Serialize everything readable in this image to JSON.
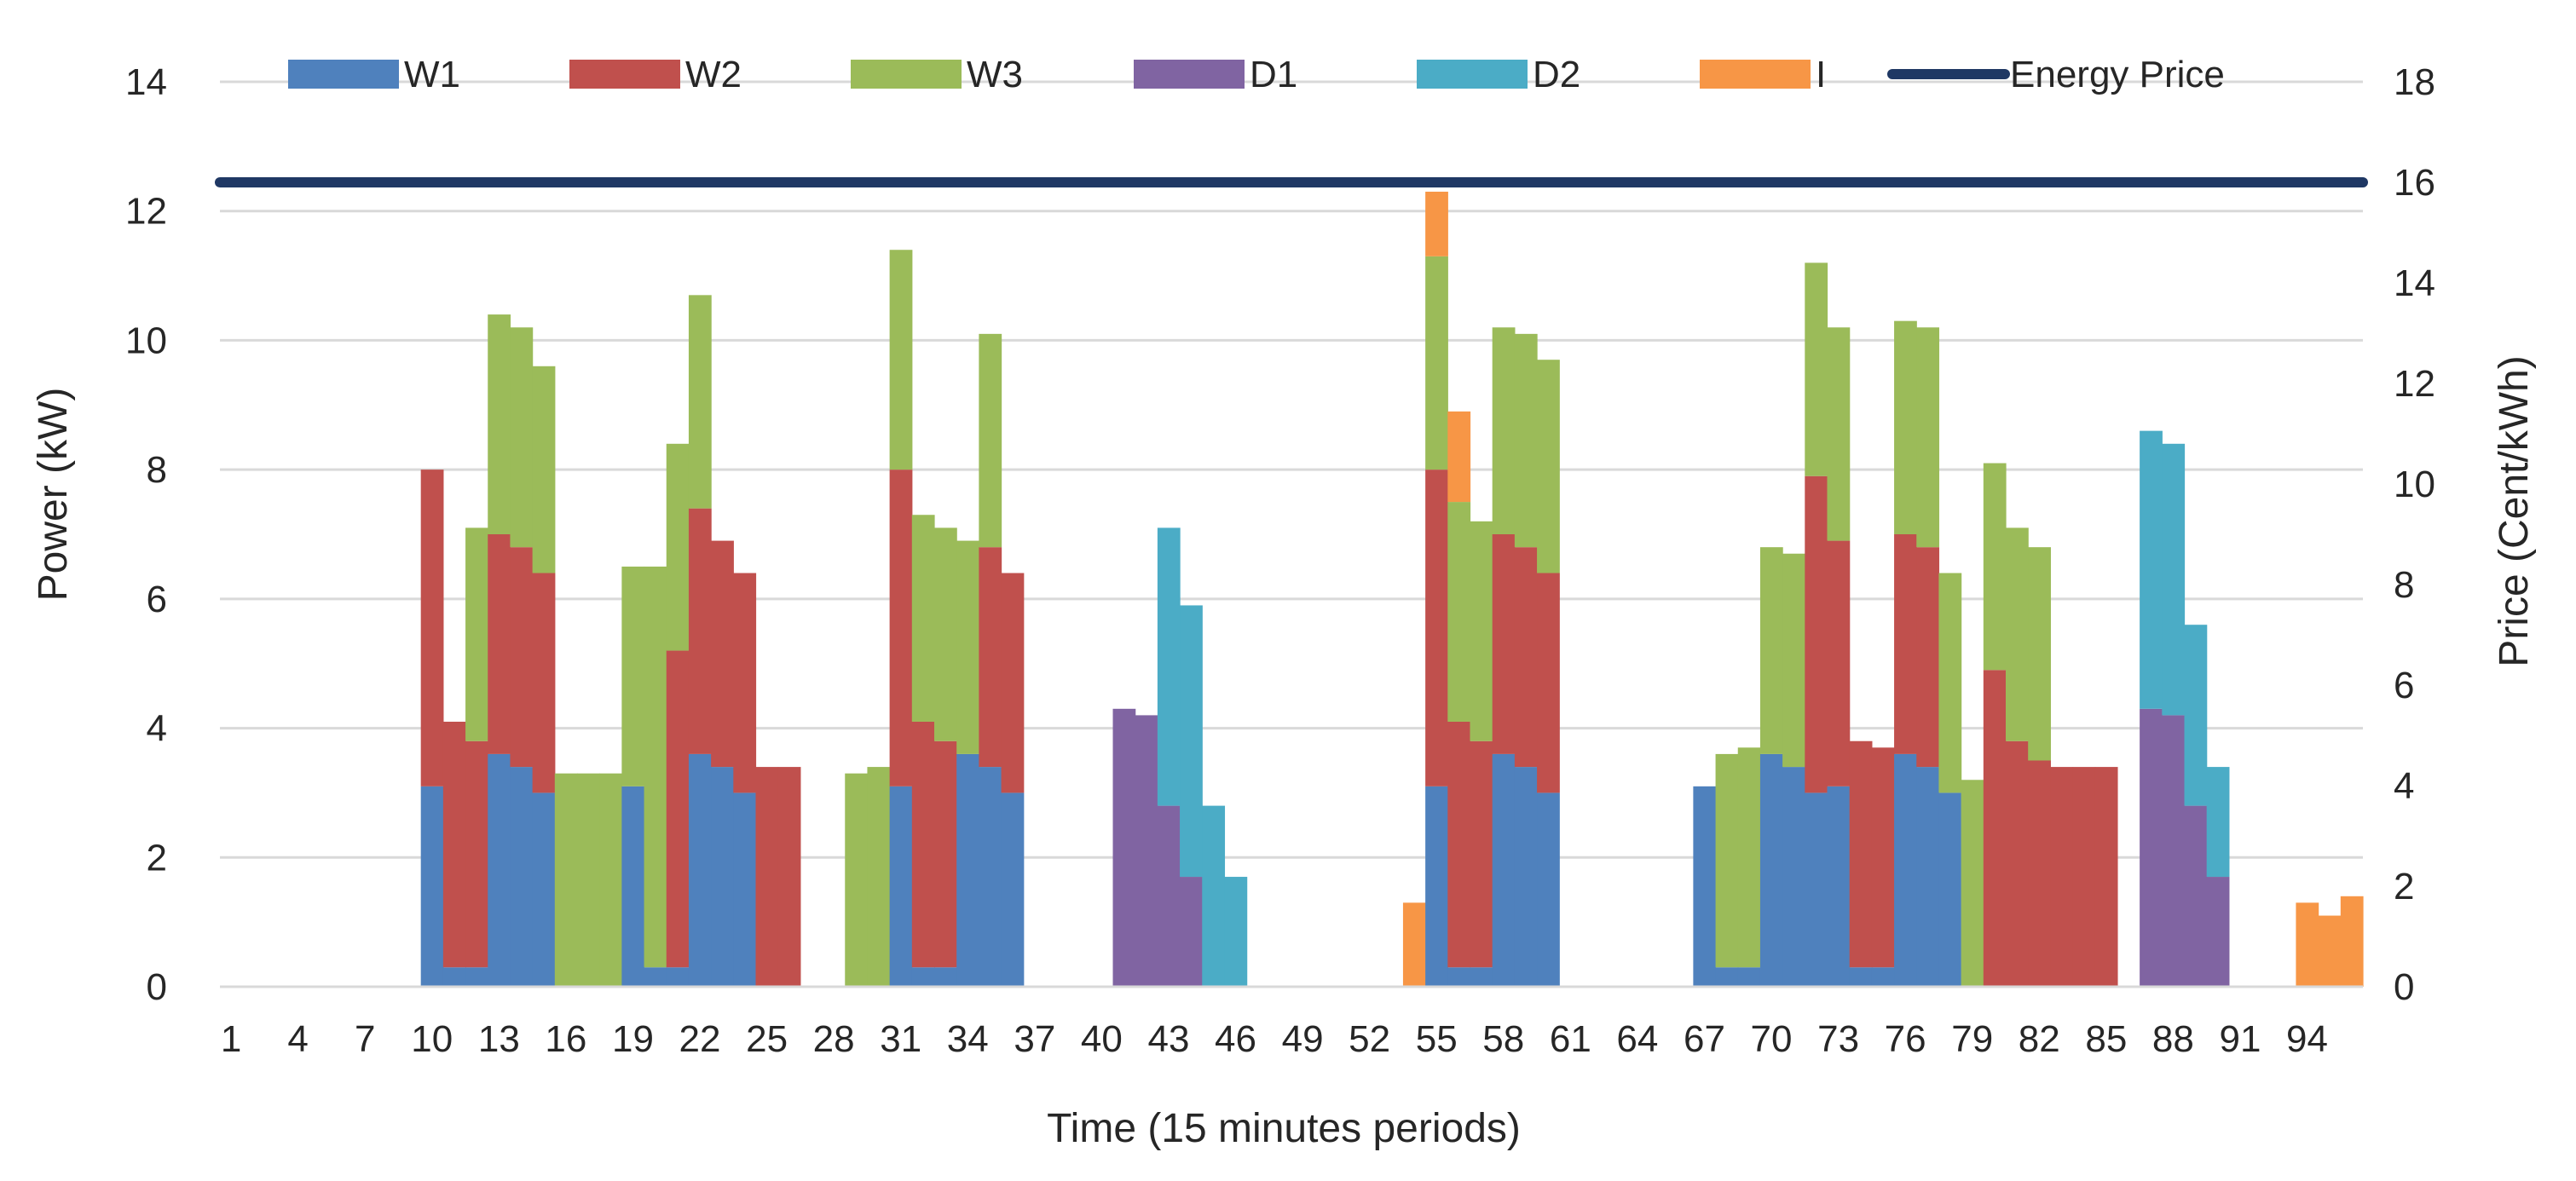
{
  "chart_data": {
    "type": "bar",
    "stacked": true,
    "title": "",
    "xlabel": "Time (15 minutes periods)",
    "ylabel": "Power (kW)",
    "y2label": "Price (Cent/kWh)",
    "ylim": [
      0,
      14
    ],
    "y2lim": [
      0,
      18
    ],
    "yticks": [
      "0",
      "2",
      "4",
      "6",
      "8",
      "10",
      "12",
      "14"
    ],
    "y2ticks": [
      "0",
      "2",
      "4",
      "6",
      "8",
      "10",
      "12",
      "14",
      "16",
      "18"
    ],
    "xtick_labels": [
      "1",
      "4",
      "7",
      "10",
      "13",
      "16",
      "19",
      "22",
      "25",
      "28",
      "31",
      "34",
      "37",
      "40",
      "43",
      "46",
      "49",
      "52",
      "55",
      "58",
      "61",
      "64",
      "67",
      "70",
      "73",
      "76",
      "79",
      "82",
      "85",
      "88",
      "91",
      "94"
    ],
    "x_count": 96,
    "grid": true,
    "legend_position": "top",
    "series": [
      {
        "name": "W1",
        "color": "#4F81BD",
        "values": [
          0,
          0,
          0,
          0,
          0,
          0,
          0,
          0,
          0,
          3.1,
          0.3,
          0.3,
          3.6,
          3.4,
          3.0,
          0,
          0,
          0,
          3.1,
          0.3,
          0.3,
          3.6,
          3.4,
          3.0,
          0,
          0,
          0,
          0,
          0,
          0,
          3.1,
          0.3,
          0.3,
          3.6,
          3.4,
          3.0,
          0,
          0,
          0,
          0,
          0,
          0,
          0,
          0,
          0,
          0,
          0,
          0,
          0,
          0,
          0,
          0,
          0,
          0,
          3.1,
          0.3,
          0.3,
          3.6,
          3.4,
          3.0,
          0,
          0,
          0,
          0,
          0,
          0,
          3.1,
          0.3,
          0.3,
          3.6,
          3.4,
          3.0,
          3.1,
          0.3,
          0.3,
          3.6,
          3.4,
          3.0,
          0,
          0,
          0,
          0,
          0,
          0,
          0,
          0,
          0,
          0,
          0,
          0,
          0,
          0,
          0,
          0,
          0,
          0
        ]
      },
      {
        "name": "W2",
        "color": "#C0504D",
        "values": [
          0,
          0,
          0,
          0,
          0,
          0,
          0,
          0,
          0,
          4.9,
          3.8,
          3.5,
          3.4,
          3.4,
          3.4,
          0,
          0,
          0,
          0,
          0,
          4.9,
          3.8,
          3.5,
          3.4,
          3.4,
          3.4,
          0,
          0,
          0,
          0,
          4.9,
          3.8,
          3.5,
          0,
          3.4,
          3.4,
          0,
          0,
          0,
          0,
          0,
          0,
          0,
          0,
          0,
          0,
          0,
          0,
          0,
          0,
          0,
          0,
          0,
          0,
          4.9,
          3.8,
          3.5,
          3.4,
          3.4,
          3.4,
          0,
          0,
          0,
          0,
          0,
          0,
          0,
          0,
          0,
          0,
          0,
          4.9,
          3.8,
          3.5,
          3.4,
          3.4,
          3.4,
          0,
          0,
          4.9,
          3.8,
          3.5,
          3.4,
          3.4,
          3.4,
          0,
          0,
          0,
          0,
          0,
          0,
          0,
          0,
          0,
          0,
          0
        ]
      },
      {
        "name": "W3",
        "color": "#9BBB59",
        "values": [
          0,
          0,
          0,
          0,
          0,
          0,
          0,
          0,
          0,
          0,
          0,
          3.3,
          3.4,
          3.4,
          3.2,
          3.3,
          3.3,
          3.3,
          3.4,
          6.2,
          3.2,
          3.3,
          0,
          0,
          0,
          0,
          0,
          0,
          3.3,
          3.4,
          3.4,
          3.2,
          3.3,
          3.3,
          3.3,
          0,
          0,
          0,
          0,
          0,
          0,
          0,
          0,
          0,
          0,
          0,
          0,
          0,
          0,
          0,
          0,
          0,
          0,
          0,
          3.3,
          3.4,
          3.4,
          3.2,
          3.3,
          3.3,
          0,
          0,
          0,
          0,
          0,
          0,
          0,
          3.3,
          3.4,
          3.2,
          3.3,
          3.3,
          3.3,
          0,
          0,
          3.3,
          3.4,
          3.4,
          3.2,
          3.2,
          3.3,
          3.3,
          0,
          0,
          0,
          0,
          0,
          0,
          0,
          0,
          0,
          0,
          0,
          0,
          0,
          0
        ]
      },
      {
        "name": "D1",
        "color": "#8064A2",
        "values": [
          0,
          0,
          0,
          0,
          0,
          0,
          0,
          0,
          0,
          0,
          0,
          0,
          0,
          0,
          0,
          0,
          0,
          0,
          0,
          0,
          0,
          0,
          0,
          0,
          0,
          0,
          0,
          0,
          0,
          0,
          0,
          0,
          0,
          0,
          0,
          0,
          0,
          0,
          0,
          0,
          4.3,
          4.2,
          2.8,
          1.7,
          0,
          0,
          0,
          0,
          0,
          0,
          0,
          0,
          0,
          0,
          0,
          0,
          0,
          0,
          0,
          0,
          0,
          0,
          0,
          0,
          0,
          0,
          0,
          0,
          0,
          0,
          0,
          0,
          0,
          0,
          0,
          0,
          0,
          0,
          0,
          0,
          0,
          0,
          0,
          0,
          0,
          0,
          4.3,
          4.2,
          2.8,
          1.7,
          0,
          0,
          0,
          0,
          0,
          0
        ]
      },
      {
        "name": "D2",
        "color": "#4BACC6",
        "values": [
          0,
          0,
          0,
          0,
          0,
          0,
          0,
          0,
          0,
          0,
          0,
          0,
          0,
          0,
          0,
          0,
          0,
          0,
          0,
          0,
          0,
          0,
          0,
          0,
          0,
          0,
          0,
          0,
          0,
          0,
          0,
          0,
          0,
          0,
          0,
          0,
          0,
          0,
          0,
          0,
          0,
          0,
          4.3,
          4.2,
          2.8,
          1.7,
          0,
          0,
          0,
          0,
          0,
          0,
          0,
          0,
          0,
          0,
          0,
          0,
          0,
          0,
          0,
          0,
          0,
          0,
          0,
          0,
          0,
          0,
          0,
          0,
          0,
          0,
          0,
          0,
          0,
          0,
          0,
          0,
          0,
          0,
          0,
          0,
          0,
          0,
          0,
          0,
          4.3,
          4.2,
          2.8,
          1.7,
          0,
          0
        ]
      },
      {
        "name": "I",
        "color": "#F79646",
        "values": [
          0,
          0,
          0,
          0,
          0,
          0,
          0,
          0,
          0,
          0,
          0,
          0,
          0,
          0,
          0,
          0,
          0,
          0,
          0,
          0,
          0,
          0,
          0,
          0,
          0,
          0,
          0,
          0,
          0,
          0,
          0,
          0,
          0,
          0,
          0,
          0,
          0,
          0,
          0,
          0,
          0,
          0,
          0,
          0,
          0,
          0,
          0,
          0,
          0,
          0,
          0,
          0,
          0,
          1.3,
          1.0,
          1.4,
          0,
          0,
          0,
          0,
          0,
          0,
          0,
          0,
          0,
          0,
          0,
          0,
          0,
          0,
          0,
          0,
          0,
          0,
          0,
          0,
          0,
          0,
          0,
          0,
          0,
          0,
          0,
          0,
          0,
          0,
          0,
          0,
          0,
          0,
          0,
          0,
          0,
          1.3,
          1.1,
          1.4
        ]
      }
    ],
    "line_series": {
      "name": "Energy Price",
      "color": "#1F3864",
      "axis": "right",
      "value": 16
    }
  }
}
